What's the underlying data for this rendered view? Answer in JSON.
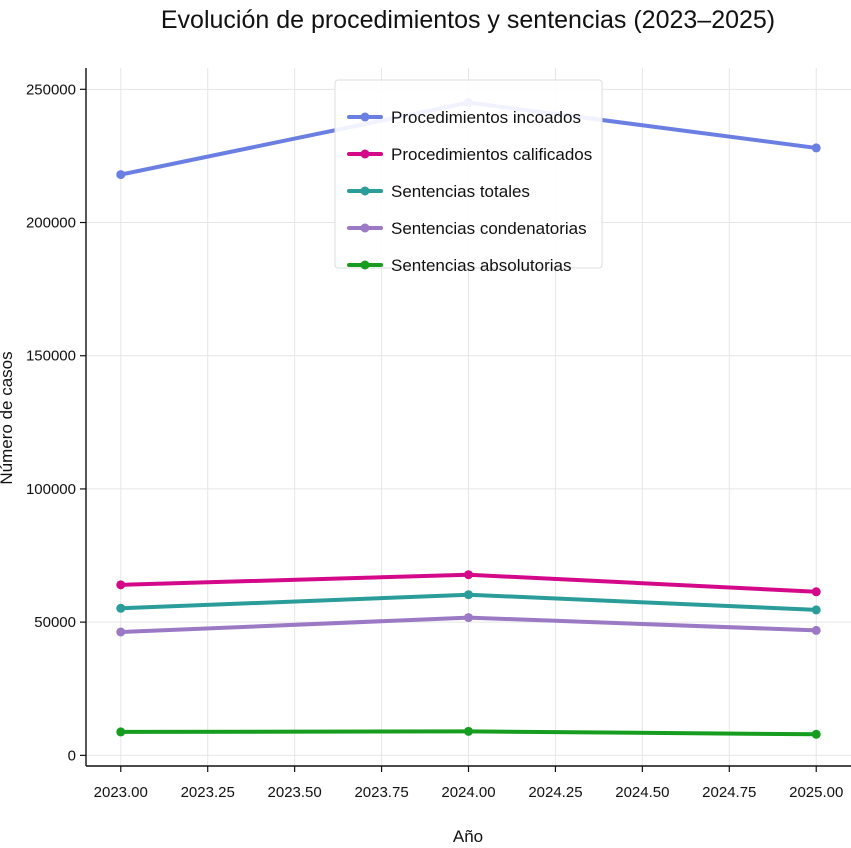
{
  "chart_data": {
    "type": "line",
    "title": "Evolución de procedimientos y sentencias (2023–2025)",
    "xlabel": "Año",
    "ylabel": "Número de casos",
    "x": [
      2023,
      2024,
      2025
    ],
    "xlim": [
      2022.9,
      2025.1
    ],
    "ylim": [
      -4000,
      258000
    ],
    "xticks": [
      2023.0,
      2023.25,
      2023.5,
      2023.75,
      2024.0,
      2024.25,
      2024.5,
      2024.75,
      2025.0
    ],
    "xtick_labels": [
      "2023.00",
      "2023.25",
      "2023.50",
      "2023.75",
      "2024.00",
      "2024.25",
      "2024.50",
      "2024.75",
      "2025.00"
    ],
    "yticks": [
      0,
      50000,
      100000,
      150000,
      200000,
      250000
    ],
    "ytick_labels": [
      "0",
      "50000",
      "100000",
      "150000",
      "200000",
      "250000"
    ],
    "grid": true,
    "legend_position": "top-center",
    "series": [
      {
        "name": "Procedimientos incoados",
        "color": "#6b7fe3",
        "values": [
          218000,
          245000,
          228000
        ]
      },
      {
        "name": "Procedimientos calificados",
        "color": "#d4098a",
        "values": [
          64000,
          67800,
          61400
        ]
      },
      {
        "name": "Sentencias totales",
        "color": "#2a9d9a",
        "values": [
          55200,
          60300,
          54600
        ]
      },
      {
        "name": "Sentencias condenatorias",
        "color": "#9b79c4",
        "values": [
          46300,
          51700,
          46900
        ]
      },
      {
        "name": "Sentencias absolutorias",
        "color": "#169c1f",
        "values": [
          8800,
          9000,
          7900
        ]
      }
    ]
  }
}
